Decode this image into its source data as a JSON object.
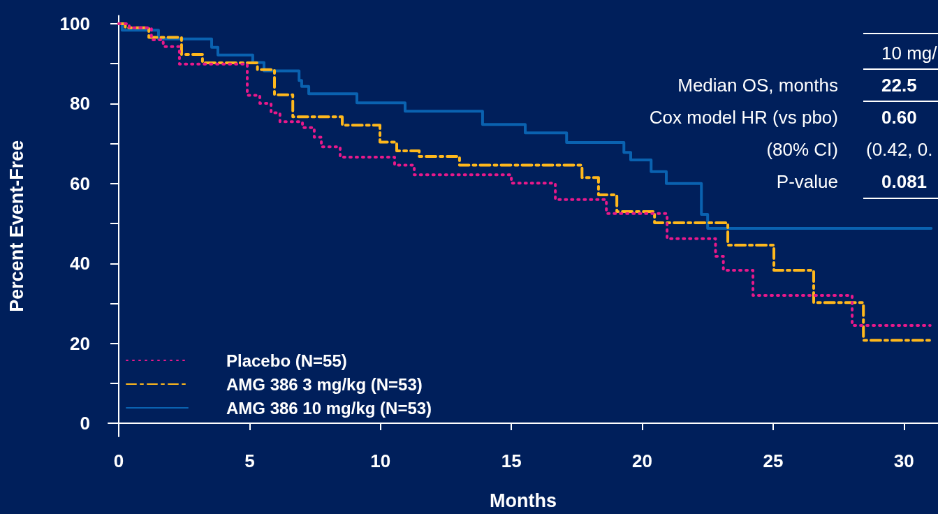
{
  "chart_data": {
    "type": "step",
    "xlabel": "Months",
    "ylabel": "Percent Event-Free",
    "xlim": [
      -0.4,
      31.3
    ],
    "xticks": [
      0,
      5,
      10,
      15,
      20,
      25,
      30
    ],
    "ylim": [
      -3.3,
      102
    ],
    "yticks": [
      0,
      {
        "value": 10,
        "label": null
      },
      20,
      {
        "value": 30,
        "label": null
      },
      40,
      {
        "value": 50,
        "label": null
      },
      60,
      {
        "value": 70,
        "label": null
      },
      80,
      {
        "value": 90,
        "label": null
      },
      100
    ],
    "grid": false,
    "legend": "bottom left",
    "marker": "none",
    "annotations": [
      "10 mg/",
      "Median OS, months",
      "22.5",
      "Cox model HR (vs pbo)",
      "0.60",
      "(80% CI)",
      "(0.42, 0.",
      "P-value",
      "0.081"
    ],
    "series": [
      {
        "name": "Placebo (N=55)",
        "color": "#e8198b",
        "line_style": "dotted",
        "x": [
          0,
          0.4,
          1.25,
          1.7,
          2.32,
          4.91,
          5.39,
          5.82,
          6.16,
          7.02,
          7.47,
          7.74,
          8.46,
          10.54,
          11.29,
          15.0,
          16.68,
          18.63,
          20.95,
          22.8,
          23.1,
          24.23,
          28.02,
          31.0
        ],
        "values": [
          100,
          99,
          96,
          94.3,
          89.9,
          82.1,
          80.1,
          77.7,
          75.5,
          74,
          71.6,
          69.2,
          66.6,
          64.6,
          62.2,
          60.1,
          56,
          52.5,
          46.2,
          41.8,
          38.3,
          32,
          24.5,
          24.5
        ]
      },
      {
        "name": "AMG 386 3 mg/kg (N=53)",
        "color": "#ffb81c",
        "line_style": "dashed",
        "x": [
          0,
          0.25,
          1.15,
          2.4,
          3.2,
          5.3,
          5.95,
          6.65,
          8.54,
          9.98,
          10.62,
          11.48,
          13.02,
          17.7,
          18.33,
          19.03,
          20.47,
          23.27,
          25.03,
          26.55,
          28.45,
          31.1
        ],
        "values": [
          100,
          99,
          96.6,
          92.3,
          90.2,
          88.5,
          82.2,
          76.7,
          74.6,
          70.4,
          68.2,
          66.8,
          64.6,
          61.5,
          57.2,
          53,
          50.2,
          44.6,
          38.3,
          30.2,
          20.8,
          20.8
        ]
      },
      {
        "name": "AMG 386 10 mg/kg (N=53)",
        "color": "#0a62b0",
        "line_style": "solid",
        "x": [
          0,
          0.13,
          1.52,
          3.55,
          3.79,
          5.12,
          5.55,
          6.89,
          6.99,
          7.26,
          9.1,
          10.94,
          13.9,
          15.53,
          17.11,
          19.3,
          19.56,
          20.34,
          20.92,
          22.26,
          22.5,
          31.04
        ],
        "values": [
          100,
          98.4,
          96.2,
          94.1,
          92.2,
          90.3,
          88.2,
          85.8,
          84.3,
          82.5,
          80.2,
          78.1,
          74.8,
          72.7,
          70.3,
          67.8,
          65.9,
          63,
          60,
          52.3,
          48.8,
          48.8
        ]
      }
    ]
  }
}
